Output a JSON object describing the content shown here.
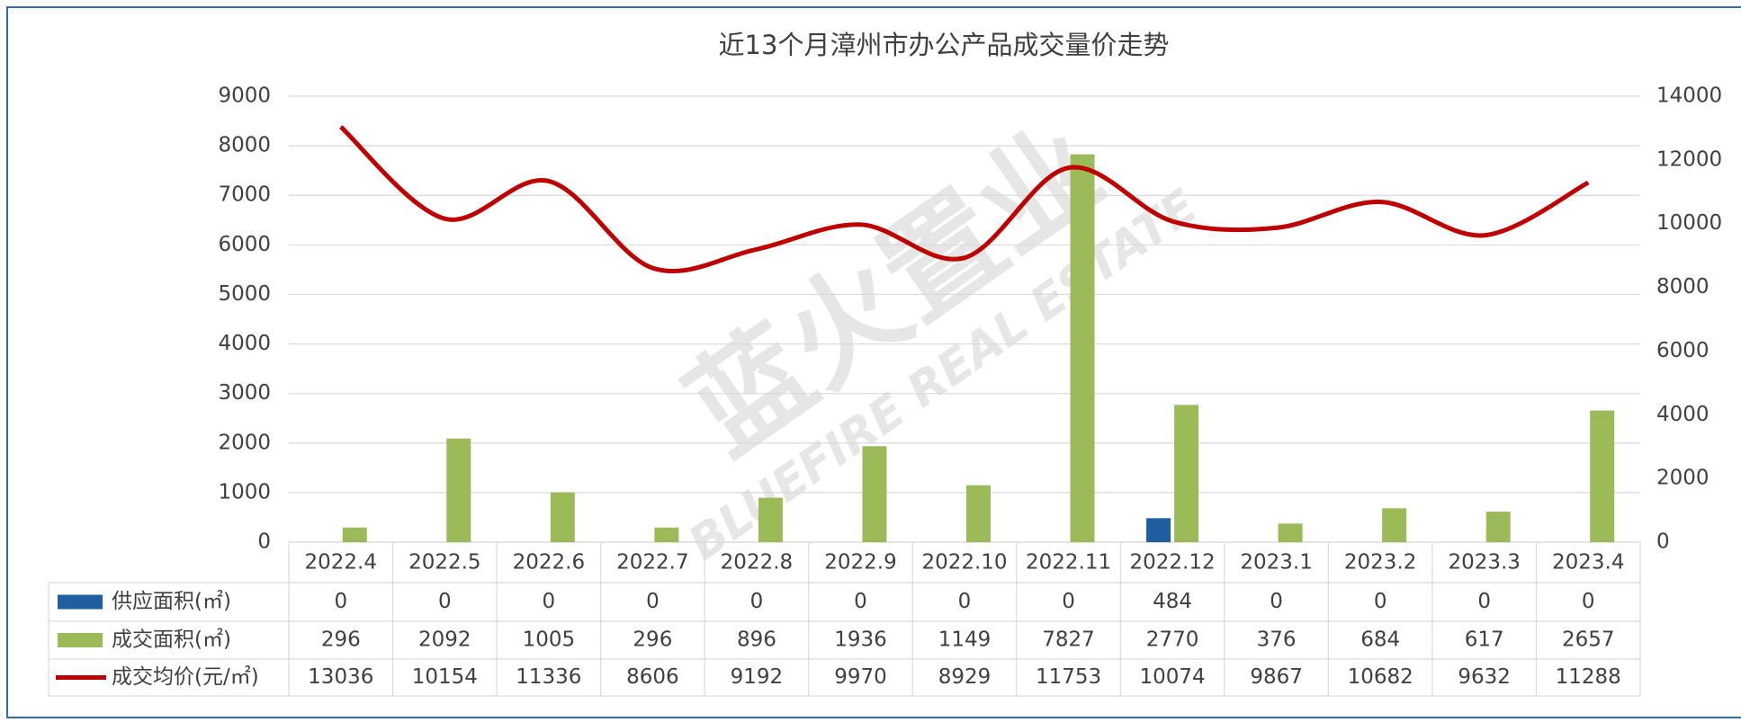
{
  "chart_data": {
    "type": "bar-line-table",
    "title": "近13个月漳州市办公产品成交量价走势",
    "watermark": [
      "蓝火置业",
      "BLUEFIRE REAL ESTATE"
    ],
    "categories": [
      "2022.4",
      "2022.5",
      "2022.6",
      "2022.7",
      "2022.8",
      "2022.9",
      "2022.10",
      "2022.11",
      "2022.12",
      "2023.1",
      "2023.2",
      "2023.3",
      "2023.4"
    ],
    "series": [
      {
        "name": "供应面积(㎡)",
        "color": "#1f5fa0",
        "type": "bar",
        "values": [
          0,
          0,
          0,
          0,
          0,
          0,
          0,
          0,
          484,
          0,
          0,
          0,
          0
        ]
      },
      {
        "name": "成交面积(㎡)",
        "color": "#9bbb59",
        "type": "bar",
        "values": [
          296,
          2092,
          1005,
          296,
          896,
          1936,
          1149,
          7827,
          2770,
          376,
          684,
          617,
          2657
        ]
      },
      {
        "name": "成交均价(元/㎡)",
        "color": "#c00000",
        "type": "line",
        "axis": "y2",
        "values": [
          13036,
          10154,
          11336,
          8606,
          9192,
          9970,
          8929,
          11753,
          10074,
          9867,
          10682,
          9632,
          11288
        ]
      }
    ],
    "ylim": [
      0,
      9000
    ],
    "yticks": [
      0,
      1000,
      2000,
      3000,
      4000,
      5000,
      6000,
      7000,
      8000,
      9000
    ],
    "y2lim": [
      0,
      14000
    ],
    "y2ticks": [
      0,
      2000,
      4000,
      6000,
      8000,
      10000,
      12000,
      14000
    ],
    "grid": true
  }
}
